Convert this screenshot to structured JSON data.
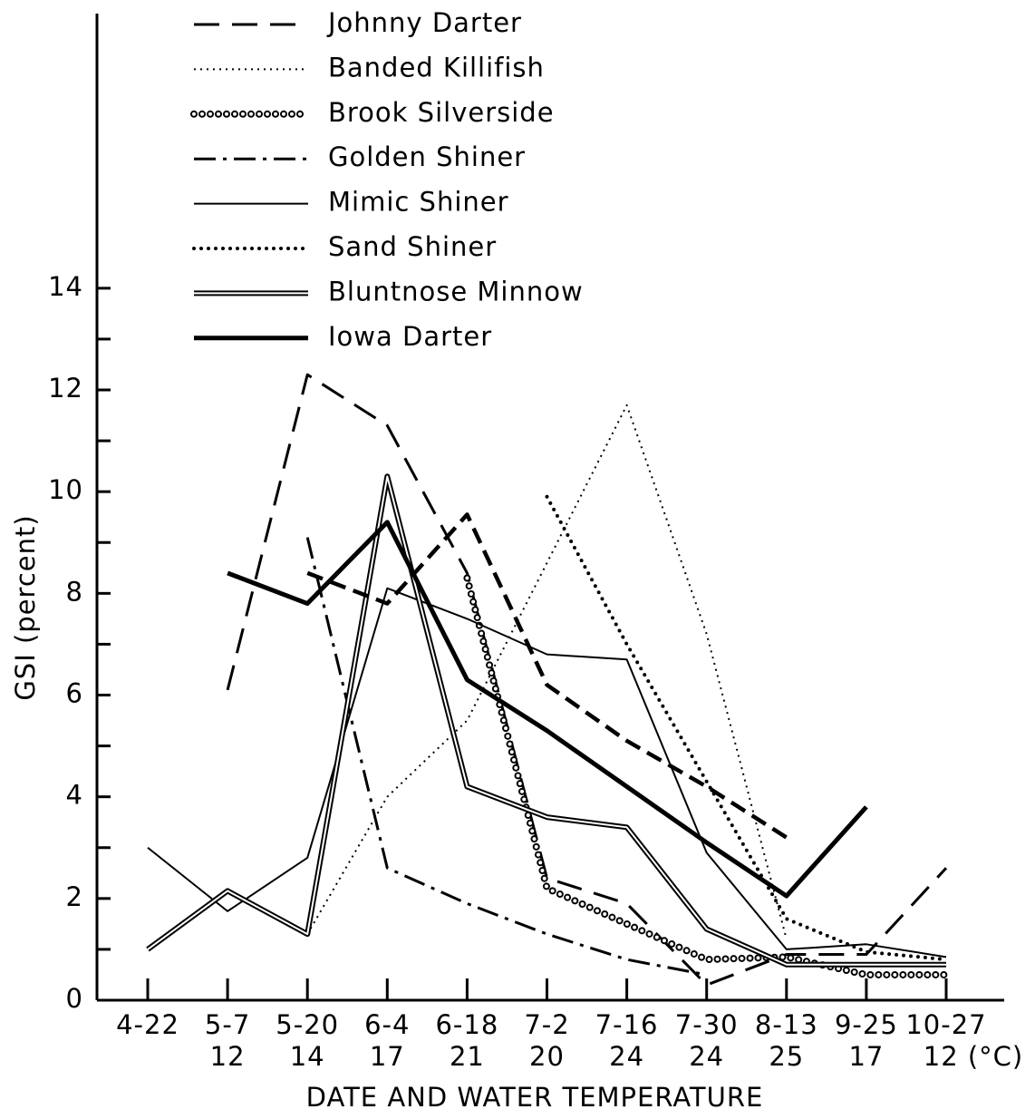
{
  "chart_data": {
    "type": "line",
    "ylabel": "GSI (percent)",
    "xlabel": "DATE AND WATER TEMPERATURE",
    "categories": [
      "4-22",
      "5-7",
      "5-20",
      "6-4",
      "6-18",
      "7-2",
      "7-16",
      "7-30",
      "8-13",
      "9-25",
      "10-27"
    ],
    "temperatures": [
      null,
      "12",
      "14",
      "17",
      "21",
      "20",
      "24",
      "24",
      "25",
      "17",
      "12 (°C)"
    ],
    "ylim": [
      0,
      19.4
    ],
    "yticks": [
      0,
      2,
      4,
      6,
      8,
      10,
      12,
      14
    ],
    "yminor": [
      1,
      3,
      5,
      7,
      9,
      11,
      13
    ],
    "series": [
      {
        "name": "Johnny Darter",
        "color": "#000",
        "style": "long-dash",
        "values": [
          null,
          6.1,
          12.3,
          11.3,
          8.4,
          2.4,
          1.9,
          0.3,
          0.9,
          0.9,
          2.6
        ]
      },
      {
        "name": "Banded Killifish",
        "color": "#000",
        "style": "dash-dot-dot",
        "values": [
          null,
          null,
          1.3,
          4.0,
          5.5,
          8.6,
          11.7,
          7.2,
          1.2,
          null,
          null
        ]
      },
      {
        "name": "Brook Silverside",
        "color": "#000",
        "style": "circles",
        "values": [
          null,
          null,
          null,
          null,
          8.3,
          2.2,
          1.5,
          0.8,
          0.85,
          0.5,
          0.5
        ]
      },
      {
        "name": "Golden Shiner",
        "color": "#000",
        "style": "dash-dot",
        "values": [
          null,
          null,
          9.1,
          2.6,
          1.9,
          1.3,
          0.8,
          0.5,
          null,
          null,
          null
        ]
      },
      {
        "name": "Mimic Shiner",
        "color": "#000",
        "style": "thin",
        "values": [
          3.0,
          1.75,
          2.8,
          8.1,
          7.5,
          6.8,
          6.7,
          2.9,
          1.0,
          1.1,
          0.85
        ]
      },
      {
        "name": "Sand Shiner",
        "color": "#000",
        "style": "dotted",
        "values": [
          null,
          null,
          null,
          null,
          null,
          9.9,
          7.0,
          4.3,
          1.6,
          0.95,
          0.8
        ]
      },
      {
        "name": "Bluntnose Minnow",
        "color": "#000",
        "style": "double",
        "values": [
          1.0,
          2.15,
          1.3,
          10.3,
          4.2,
          3.6,
          3.4,
          1.4,
          0.7,
          0.7,
          0.7
        ]
      },
      {
        "name": "Iowa Darter",
        "color": "#000",
        "style": "thick",
        "values": [
          null,
          8.4,
          7.8,
          9.4,
          6.3,
          5.3,
          4.2,
          3.1,
          2.05,
          3.8,
          null
        ]
      },
      {
        "name": null,
        "color": "#000",
        "style": "bold-dash",
        "values": [
          null,
          null,
          8.4,
          7.8,
          9.55,
          6.2,
          5.1,
          4.2,
          3.2,
          null,
          0.9
        ]
      }
    ]
  }
}
